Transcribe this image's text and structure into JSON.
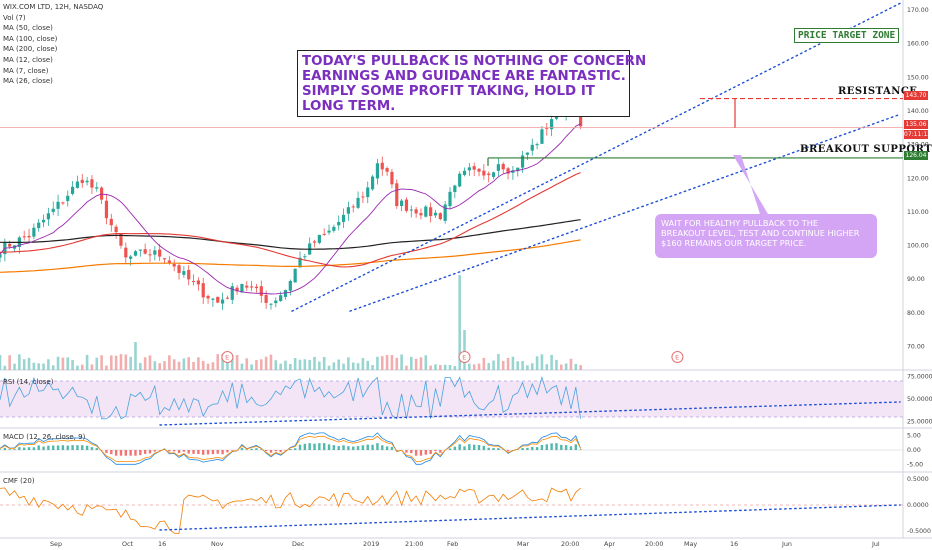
{
  "legend": {
    "symbol": "WIX.COM LTD, 12H, NASDAQ",
    "indicators": [
      "Vol (7)",
      "MA (50, close)",
      "MA (100, close)",
      "MA (200, close)",
      "MA (12, close)",
      "MA (7, close)",
      "MA (26, close)"
    ]
  },
  "panes": {
    "rsi_label": "RSI (14, close)",
    "macd_label": "MACD (12, 26, close, 9)",
    "cmf_label": "CMF (20)"
  },
  "annotations": {
    "main_note": [
      "TODAY'S PULLBACK IS NOTHING OF CONCERN",
      "EARNINGS AND GUIDANCE ARE FANTASTIC.",
      "SIMPLY SOME PROFIT TAKING, HOLD IT",
      "LONG TERM."
    ],
    "pullback_note": [
      "WAIT FOR HEALTHY PULLBACK TO THE",
      "BREAKOUT LEVEL, TEST AND CONTINUE HIGHER",
      "$160 REMAINS OUR TARGET PRICE."
    ],
    "price_target_zone": "PRICE TARGET ZONE",
    "resistance": "RESISTANCE",
    "breakout_support": "BREAKOUT SUPPORT"
  },
  "price_tags": {
    "resistance": "143.70",
    "last": "135.06",
    "countdown": "07:11:13",
    "support": "126.04"
  },
  "colors": {
    "candle_up": "#26a69a",
    "candle_down": "#ef5350",
    "ma_red": "#e53935",
    "ma_black": "#222222",
    "ma_orange": "#f57c00",
    "ma_purple": "#9c27b0",
    "trend_blue": "#1e4fd8",
    "support_green": "#2e7d32",
    "resistance_red": "#e53935",
    "rsi_line": "#4aa3df",
    "rsi_band": "#f3e5f5",
    "cmf_line": "#f57c00",
    "volume_up": "#80cbc4",
    "volume_down": "#ef9a9a"
  },
  "chart_data": [
    {
      "type": "candlestick",
      "name": "WIX 12H price",
      "x_ticks": [
        "Sep",
        "Oct",
        "16",
        "Nov",
        "Dec",
        "2019",
        "21:00",
        "Feb",
        "Mar",
        "20:00",
        "Apr",
        "20:00",
        "May",
        "16",
        "Jun",
        "Jul"
      ],
      "y_ticks": [
        170.0,
        160.0,
        150.0,
        140.0,
        130.0,
        120.0,
        110.0,
        100.0,
        90.0,
        80.0,
        70.0
      ],
      "ylim": [
        63,
        173
      ],
      "close_path": [
        [
          0,
          99
        ],
        [
          6,
          103
        ],
        [
          12,
          112
        ],
        [
          17,
          120
        ],
        [
          20,
          116
        ],
        [
          23,
          106
        ],
        [
          26,
          96
        ],
        [
          30,
          98
        ],
        [
          34,
          97
        ],
        [
          38,
          91
        ],
        [
          42,
          86
        ],
        [
          45,
          83
        ],
        [
          50,
          89
        ],
        [
          53,
          86
        ],
        [
          56,
          83
        ],
        [
          59,
          87
        ],
        [
          62,
          96
        ],
        [
          65,
          101
        ],
        [
          68,
          104
        ],
        [
          72,
          110
        ],
        [
          76,
          117
        ],
        [
          78,
          125
        ],
        [
          80,
          121
        ],
        [
          82,
          113
        ],
        [
          85,
          111
        ],
        [
          88,
          110
        ],
        [
          91,
          109
        ],
        [
          94,
          119
        ],
        [
          97,
          122
        ],
        [
          100,
          120
        ],
        [
          103,
          125
        ],
        [
          106,
          122
        ],
        [
          108,
          126
        ],
        [
          111,
          131
        ],
        [
          114,
          138
        ],
        [
          117,
          142
        ],
        [
          119,
          141
        ],
        [
          120,
          135
        ]
      ],
      "support_level": 126.04,
      "resistance_level": 143.7,
      "last_price": 135.06
    },
    {
      "type": "line",
      "name": "RSI (14, close)",
      "y_ticks": [
        75.0,
        50.0,
        25.0
      ],
      "band": [
        30,
        70
      ]
    },
    {
      "type": "line",
      "name": "MACD (12, 26, close, 9)",
      "y_ticks": [
        5.0,
        0.0,
        -5.0
      ]
    },
    {
      "type": "line",
      "name": "CMF (20)",
      "y_ticks": [
        0.5,
        0.0,
        -0.5
      ]
    }
  ]
}
